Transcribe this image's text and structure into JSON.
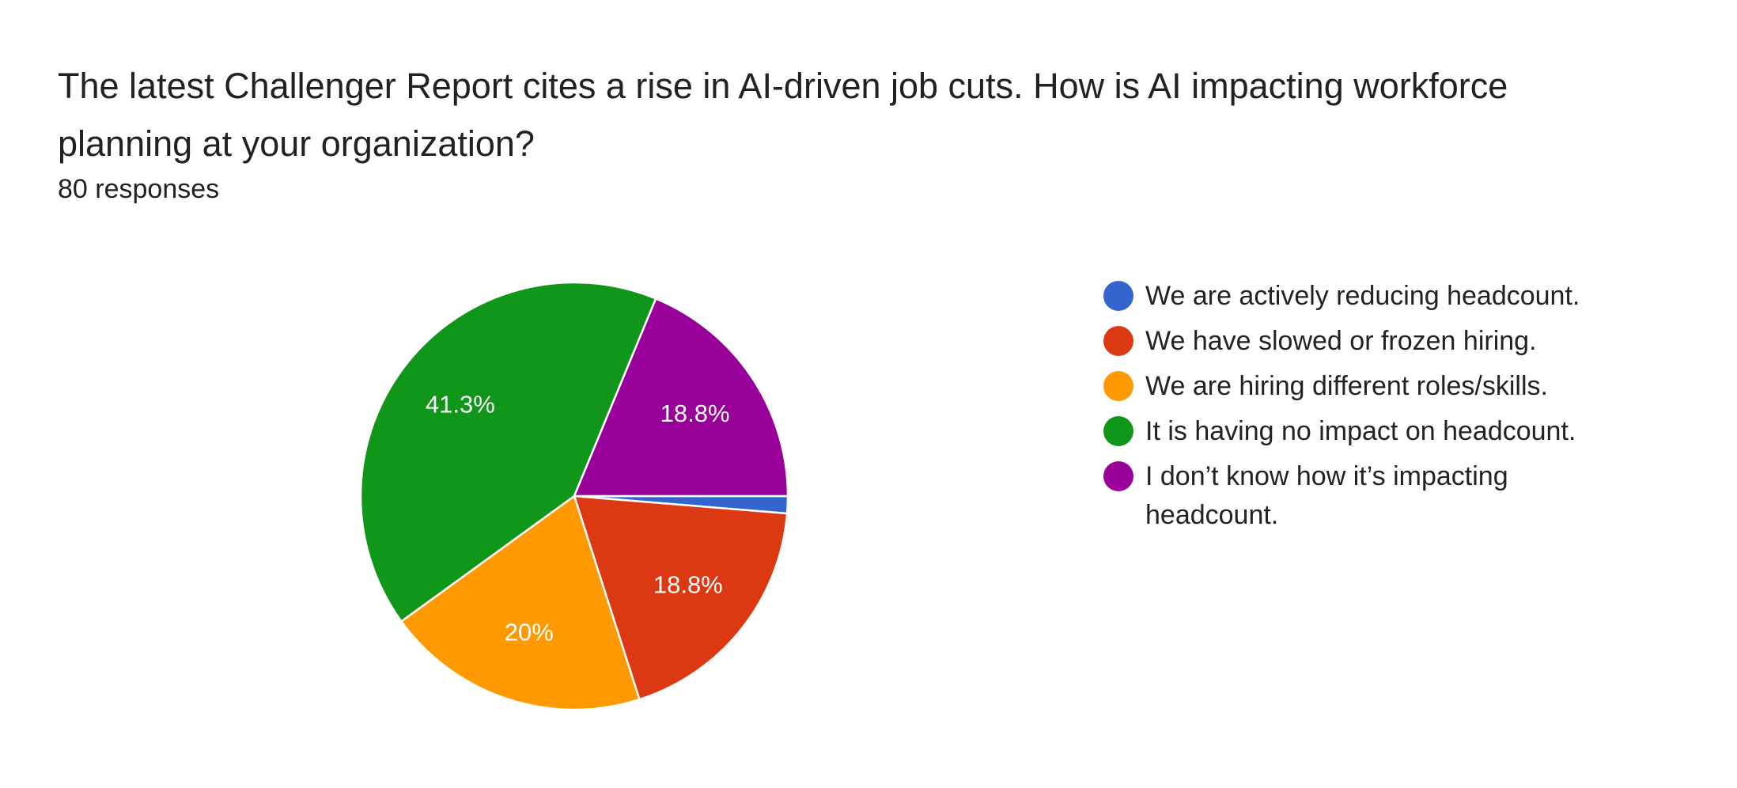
{
  "chart_data": {
    "type": "pie",
    "title": "The latest Challenger Report cites a rise in AI-driven job cuts. How is AI impacting workforce planning at your organization?",
    "subtitle": "80 responses",
    "categories": [
      "We are actively reducing headcount.",
      "We have slowed or frozen hiring.",
      "We are hiring different roles/skills.",
      "It is having no impact on headcount.",
      "I don’t know how it’s impacting headcount."
    ],
    "values": [
      1.3,
      18.8,
      20,
      41.3,
      18.8
    ],
    "value_labels": [
      null,
      "18.8%",
      "20%",
      "41.3%",
      "18.8%"
    ],
    "colors": [
      "#3366cc",
      "#dc3912",
      "#ff9900",
      "#109618",
      "#990099"
    ],
    "legend": "right"
  }
}
